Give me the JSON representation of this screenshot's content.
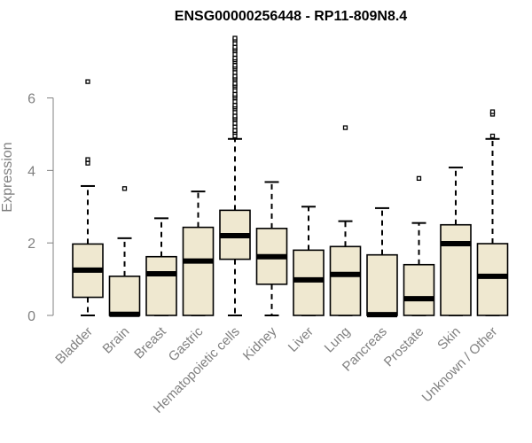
{
  "colors": {
    "box_fill": "#efe8d0",
    "box_stroke": "#000000",
    "axis": "#808080",
    "text_muted": "#808080"
  },
  "chart_data": {
    "type": "boxplot",
    "title": "ENSG00000256448 - RP11-809N8.4",
    "xlabel": "",
    "ylabel": "Expression",
    "ylim": [
      0,
      7.7
    ],
    "yticks": [
      0,
      2,
      4,
      6
    ],
    "categories": [
      "Bladder",
      "Brain",
      "Breast",
      "Gastric",
      "Hematopoietic cells",
      "Kidney",
      "Liver",
      "Lung",
      "Pancreas",
      "Prostate",
      "Skin",
      "Unknown / Other"
    ],
    "boxes": [
      {
        "category": "Bladder",
        "whisker_low": 0.0,
        "q1": 0.5,
        "median": 1.25,
        "q3": 1.97,
        "whisker_high": 3.57,
        "outliers": [
          4.2,
          4.3,
          6.45
        ]
      },
      {
        "category": "Brain",
        "whisker_low": 0.0,
        "q1": 0.0,
        "median": 0.03,
        "q3": 1.08,
        "whisker_high": 2.13,
        "outliers": [
          3.5
        ]
      },
      {
        "category": "Breast",
        "whisker_low": 0.0,
        "q1": 0.0,
        "median": 1.15,
        "q3": 1.62,
        "whisker_high": 2.68,
        "outliers": []
      },
      {
        "category": "Gastric",
        "whisker_low": 0.0,
        "q1": 0.0,
        "median": 1.5,
        "q3": 2.43,
        "whisker_high": 3.42,
        "outliers": []
      },
      {
        "category": "Hematopoietic cells",
        "whisker_low": 0.0,
        "q1": 1.55,
        "median": 2.2,
        "q3": 2.9,
        "whisker_high": 4.87,
        "outliers": [
          4.95,
          5.05,
          5.1,
          5.2,
          5.3,
          5.4,
          5.45,
          5.5,
          5.6,
          5.7,
          5.75,
          5.8,
          5.9,
          6.0,
          6.05,
          6.1,
          6.2,
          6.3,
          6.35,
          6.4,
          6.5,
          6.55,
          6.6,
          6.7,
          6.8,
          6.85,
          6.9,
          7.0,
          7.05,
          7.1,
          7.2,
          7.3,
          7.35,
          7.4,
          7.5,
          7.6,
          7.65
        ]
      },
      {
        "category": "Kidney",
        "whisker_low": 0.0,
        "q1": 0.86,
        "median": 1.62,
        "q3": 2.4,
        "whisker_high": 3.68,
        "outliers": []
      },
      {
        "category": "Liver",
        "whisker_low": 0.0,
        "q1": 0.0,
        "median": 0.98,
        "q3": 1.8,
        "whisker_high": 3.0,
        "outliers": []
      },
      {
        "category": "Lung",
        "whisker_low": 0.0,
        "q1": 0.0,
        "median": 1.13,
        "q3": 1.9,
        "whisker_high": 2.6,
        "outliers": [
          5.18
        ]
      },
      {
        "category": "Pancreas",
        "whisker_low": 0.0,
        "q1": 0.0,
        "median": 0.02,
        "q3": 1.67,
        "whisker_high": 2.96,
        "outliers": []
      },
      {
        "category": "Prostate",
        "whisker_low": 0.0,
        "q1": 0.0,
        "median": 0.46,
        "q3": 1.4,
        "whisker_high": 2.55,
        "outliers": [
          3.78
        ]
      },
      {
        "category": "Skin",
        "whisker_low": 0.0,
        "q1": 0.0,
        "median": 1.98,
        "q3": 2.5,
        "whisker_high": 4.08,
        "outliers": []
      },
      {
        "category": "Unknown / Other",
        "whisker_low": 0.0,
        "q1": 0.0,
        "median": 1.08,
        "q3": 1.98,
        "whisker_high": 4.87,
        "outliers": [
          4.95,
          5.55,
          5.62
        ]
      }
    ]
  }
}
